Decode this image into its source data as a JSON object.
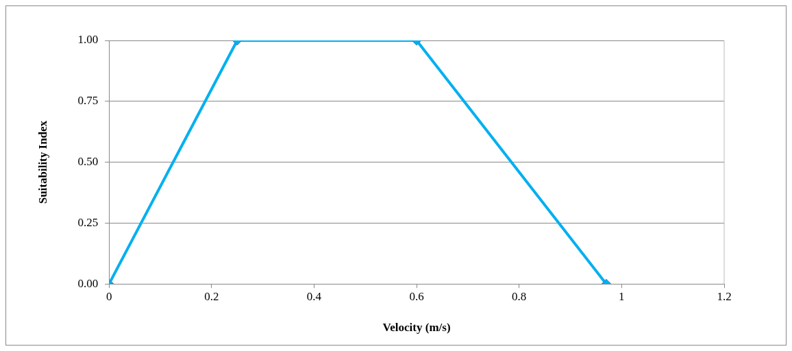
{
  "chart_data": {
    "type": "line",
    "xlabel": "Velocity (m/s)",
    "ylabel": "Suitability Index",
    "x": [
      0,
      0.25,
      0.6,
      0.97
    ],
    "series": [
      {
        "color": "#00b0f0",
        "values": [
          0,
          1,
          1,
          0
        ]
      }
    ],
    "xlim": [
      0,
      1.2
    ],
    "xticks": [
      0,
      0.2,
      0.4,
      0.6,
      0.8,
      1,
      1.2
    ],
    "ylim": [
      0,
      1
    ],
    "yticks": [
      {
        "value": 0,
        "label": "0.00"
      },
      {
        "value": 0.25,
        "label": "0.25"
      },
      {
        "value": 0.5,
        "label": "0.50"
      },
      {
        "value": 0.75,
        "label": "0.75"
      },
      {
        "value": 1,
        "label": "1.00"
      }
    ],
    "grid": "y",
    "legend": false,
    "marker": "diamond",
    "line_style": "solid"
  }
}
